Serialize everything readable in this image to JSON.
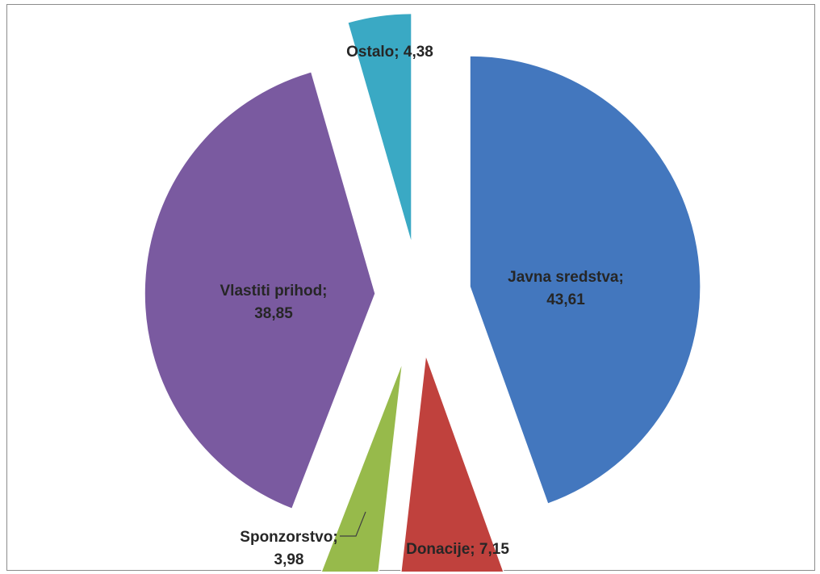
{
  "chart_data": {
    "type": "pie",
    "exploded": true,
    "title": "",
    "label_format": "{name}; {value}",
    "slices": [
      {
        "name": "Javna sredstva",
        "value": "43,61",
        "numeric": 43.61,
        "color": "#4377be"
      },
      {
        "name": "Donacije",
        "value": "7,15",
        "numeric": 7.15,
        "color": "#c0413d"
      },
      {
        "name": "Sponzorstvo",
        "value": "3,98",
        "numeric": 3.98,
        "color": "#97ba4b"
      },
      {
        "name": "Vlastiti prihod",
        "value": "38,85",
        "numeric": 38.85,
        "color": "#7a5aa0"
      },
      {
        "name": "Ostalo",
        "value": "4,38",
        "numeric": 4.38,
        "color": "#3aa9c4"
      }
    ]
  }
}
